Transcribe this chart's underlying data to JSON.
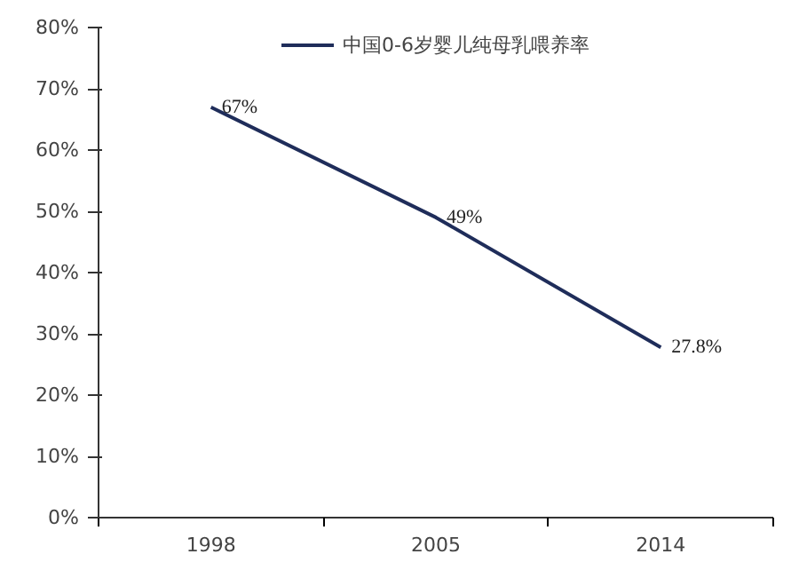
{
  "chart_data": {
    "type": "line",
    "categories": [
      "1998",
      "2005",
      "2014"
    ],
    "series": [
      {
        "name": "中国0-6岁婴儿纯母乳喂养率",
        "color": "#1f2d5a",
        "values": [
          67,
          49,
          27.8
        ],
        "value_labels": [
          "67%",
          "49%",
          "27.8%"
        ]
      }
    ],
    "ylim": [
      0,
      80
    ],
    "yticks": [
      {
        "value": 0,
        "label": "0%"
      },
      {
        "value": 10,
        "label": "10%"
      },
      {
        "value": 20,
        "label": "20%"
      },
      {
        "value": 30,
        "label": "30%"
      },
      {
        "value": 40,
        "label": "40%"
      },
      {
        "value": 50,
        "label": "50%"
      },
      {
        "value": 60,
        "label": "60%"
      },
      {
        "value": 70,
        "label": "70%"
      },
      {
        "value": 80,
        "label": "80%"
      }
    ],
    "grid": false,
    "legend": "top",
    "marker": "none",
    "line_style": "solid"
  }
}
